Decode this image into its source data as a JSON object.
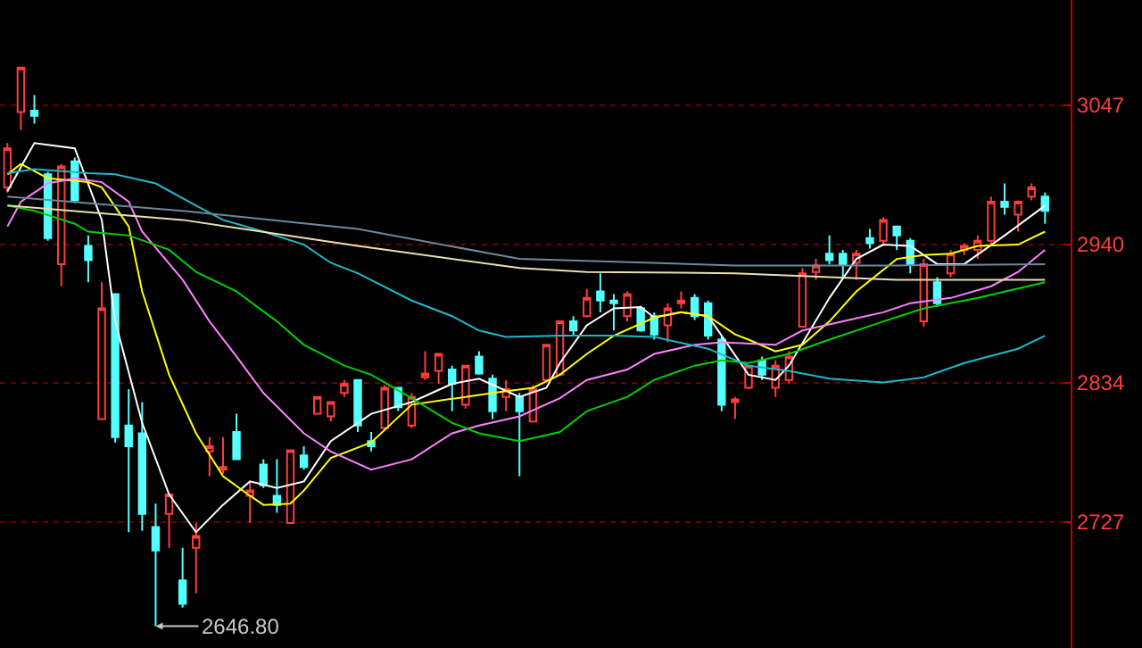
{
  "chart_data": {
    "type": "candlestick",
    "categories": [
      null,
      null,
      null,
      null,
      null,
      null,
      null,
      null,
      null,
      null,
      null,
      null,
      null,
      null,
      null,
      null,
      null,
      null,
      null,
      null,
      null,
      null,
      null,
      null,
      null,
      null,
      null,
      null,
      null,
      null,
      null,
      null,
      null,
      null,
      null,
      null,
      null,
      null,
      null,
      null,
      null,
      null,
      null,
      null,
      null,
      null,
      null,
      null,
      null,
      null,
      null,
      null,
      null,
      null,
      null,
      null,
      null,
      null,
      null,
      null,
      null,
      null,
      null,
      null,
      null,
      null,
      null,
      null,
      null,
      null,
      null,
      null,
      null,
      null,
      null,
      null,
      null,
      null
    ],
    "ohlc": [
      [
        2984,
        3018,
        2980,
        3014
      ],
      [
        3042,
        3076,
        3028,
        3076
      ],
      [
        3043,
        3055,
        3033,
        3039
      ],
      [
        2994,
        2996,
        2943,
        2945
      ],
      [
        2925,
        3002,
        2908,
        3000
      ],
      [
        3004,
        3007,
        2972,
        2974
      ],
      [
        2939,
        2947,
        2911,
        2928
      ],
      [
        2806,
        2911,
        2806,
        2891
      ],
      [
        2902,
        2902,
        2788,
        2792
      ],
      [
        2801,
        2829,
        2719,
        2785
      ],
      [
        2795,
        2819,
        2720,
        2733
      ],
      [
        2723,
        2741,
        2646.8,
        2705
      ],
      [
        2733,
        2748,
        2707,
        2748
      ],
      [
        2682,
        2707,
        2661,
        2664
      ],
      [
        2707,
        2726,
        2672,
        2716
      ],
      [
        2781,
        2792,
        2762,
        2785
      ],
      [
        2767,
        2792,
        2764,
        2769
      ],
      [
        2796,
        2810,
        2775,
        2775
      ],
      [
        2747,
        2758,
        2726,
        2751
      ],
      [
        2771,
        2775,
        2753,
        2755
      ],
      [
        2747,
        2775,
        2734,
        2740
      ],
      [
        2726,
        2782,
        2726,
        2782
      ],
      [
        2778,
        2785,
        2767,
        2769
      ],
      [
        2810,
        2823,
        2810,
        2823
      ],
      [
        2808,
        2819,
        2804,
        2819
      ],
      [
        2826,
        2836,
        2823,
        2833
      ],
      [
        2836,
        2836,
        2796,
        2801
      ],
      [
        2789,
        2796,
        2781,
        2785
      ],
      [
        2799,
        2832,
        2797,
        2830
      ],
      [
        2830,
        2830,
        2812,
        2815
      ],
      [
        2801,
        2826,
        2799,
        2823
      ],
      [
        2838,
        2858,
        2836,
        2841
      ],
      [
        2843,
        2856,
        2833,
        2856
      ],
      [
        2844,
        2847,
        2812,
        2833
      ],
      [
        2817,
        2847,
        2814,
        2847
      ],
      [
        2854,
        2858,
        2840,
        2841
      ],
      [
        2837,
        2840,
        2806,
        2812
      ],
      [
        2823,
        2836,
        2812,
        2829
      ],
      [
        2823,
        2826,
        2762,
        2812
      ],
      [
        2804,
        2832,
        2804,
        2829
      ],
      [
        2836,
        2863,
        2836,
        2863
      ],
      [
        2840,
        2881,
        2840,
        2881
      ],
      [
        2881,
        2885,
        2870,
        2874
      ],
      [
        2885,
        2906,
        2884,
        2899
      ],
      [
        2904,
        2918,
        2888,
        2897
      ],
      [
        2897,
        2902,
        2874,
        2895
      ],
      [
        2885,
        2904,
        2881,
        2902
      ],
      [
        2891,
        2893,
        2873,
        2874
      ],
      [
        2885,
        2888,
        2867,
        2871
      ],
      [
        2878,
        2895,
        2865,
        2891
      ],
      [
        2895,
        2904,
        2891,
        2897
      ],
      [
        2899,
        2902,
        2882,
        2885
      ],
      [
        2895,
        2897,
        2867,
        2870
      ],
      [
        2867,
        2870,
        2812,
        2817
      ],
      [
        2819,
        2823,
        2806,
        2821
      ],
      [
        2830,
        2847,
        2829,
        2847
      ],
      [
        2851,
        2854,
        2836,
        2840
      ],
      [
        2830,
        2851,
        2823,
        2847
      ],
      [
        2836,
        2858,
        2833,
        2854
      ],
      [
        2877,
        2922,
        2877,
        2918
      ],
      [
        2919,
        2929,
        2913,
        2924
      ],
      [
        2933,
        2947,
        2925,
        2928
      ],
      [
        2933,
        2936,
        2915,
        2925
      ],
      [
        2926,
        2936,
        2913,
        2933
      ],
      [
        2945,
        2952,
        2937,
        2941
      ],
      [
        2943,
        2961,
        2940,
        2959
      ],
      [
        2954,
        2954,
        2936,
        2947
      ],
      [
        2943,
        2945,
        2918,
        2925
      ],
      [
        2881,
        2929,
        2877,
        2925
      ],
      [
        2911,
        2915,
        2892,
        2895
      ],
      [
        2918,
        2936,
        2915,
        2933
      ],
      [
        2936,
        2941,
        2932,
        2939
      ],
      [
        2936,
        2947,
        2929,
        2943
      ],
      [
        2943,
        2977,
        2940,
        2973
      ],
      [
        2973,
        2987,
        2963,
        2969
      ],
      [
        2963,
        2974,
        2950,
        2973
      ],
      [
        2977,
        2987,
        2974,
        2984
      ],
      [
        2977,
        2980,
        2956,
        2966
      ]
    ],
    "colors": [
      "#ff3c3c",
      "#ff3c3c",
      "#54ffff",
      "#54ffff",
      "#ff3c3c",
      "#54ffff",
      "#54ffff",
      "#ff3c3c",
      "#54ffff",
      "#54ffff",
      "#54ffff",
      "#54ffff",
      "#ff3c3c",
      "#54ffff",
      "#ff3c3c",
      "#ff3c3c",
      "#ff3c3c",
      "#54ffff",
      "#ff3c3c",
      "#54ffff",
      "#54ffff",
      "#ff3c3c",
      "#54ffff",
      "#ff3c3c",
      "#ff3c3c",
      "#ff3c3c",
      "#54ffff",
      "#54ffff",
      "#ff3c3c",
      "#54ffff",
      "#ff3c3c",
      "#ff3c3c",
      "#ff3c3c",
      "#54ffff",
      "#ff3c3c",
      "#54ffff",
      "#54ffff",
      "#ff3c3c",
      "#54ffff",
      "#ff3c3c",
      "#ff3c3c",
      "#ff3c3c",
      "#54ffff",
      "#ff3c3c",
      "#54ffff",
      "#54ffff",
      "#ff3c3c",
      "#54ffff",
      "#54ffff",
      "#ff3c3c",
      "#ff3c3c",
      "#54ffff",
      "#54ffff",
      "#54ffff",
      "#ff3c3c",
      "#ff3c3c",
      "#54ffff",
      "#ff3c3c",
      "#ff3c3c",
      "#ff3c3c",
      "#ff3c3c",
      "#54ffff",
      "#54ffff",
      "#ff3c3c",
      "#54ffff",
      "#ff3c3c",
      "#54ffff",
      "#54ffff",
      "#ff3c3c",
      "#54ffff",
      "#ff3c3c",
      "#ff3c3c",
      "#ff3c3c",
      "#ff3c3c",
      "#54ffff",
      "#ff3c3c",
      "#ff3c3c",
      "#54ffff"
    ],
    "series": [
      {
        "type": "line",
        "color": "#ffffff",
        "values": [
          2981,
          null,
          3018,
          null,
          null,
          3014,
          null,
          2959,
          2881,
          null,
          2803,
          null,
          2748,
          null,
          2719,
          null,
          2740,
          null,
          2758,
          null,
          2753,
          null,
          2758,
          null,
          2789,
          null,
          null,
          2810,
          null,
          null,
          2819,
          null,
          null,
          2833,
          null,
          2837,
          null,
          null,
          2823,
          null,
          2830,
          2849,
          null,
          2878,
          null,
          2891,
          null,
          2892,
          2884,
          null,
          2888,
          null,
          2885,
          null,
          null,
          2840,
          null,
          2836,
          2847,
          null,
          null,
          2899,
          null,
          2929,
          null,
          2940,
          null,
          2939,
          null,
          2925,
          null,
          2925,
          null,
          null,
          2947,
          null,
          null,
          2970
        ]
      },
      {
        "type": "line",
        "color": "#ffff00",
        "values": [
          2994,
          3002,
          null,
          2991,
          null,
          null,
          2988,
          2984,
          null,
          2954,
          2904,
          null,
          2840,
          null,
          2795,
          null,
          2762,
          null,
          2747,
          2740,
          null,
          2741,
          2751,
          null,
          2776,
          null,
          null,
          2788,
          null,
          null,
          2817,
          null,
          null,
          null,
          2823,
          null,
          2826,
          null,
          null,
          2830,
          null,
          2840,
          null,
          2856,
          null,
          2870,
          null,
          null,
          2884,
          null,
          2888,
          null,
          2885,
          null,
          2871,
          2867,
          null,
          2858,
          null,
          2863,
          null,
          2881,
          null,
          2904,
          null,
          null,
          2929,
          null,
          2932,
          null,
          2933,
          null,
          2939,
          null,
          null,
          2940,
          null,
          2950
        ]
      },
      {
        "type": "line",
        "color": "#ff80ff",
        "values": [
          2954,
          2973,
          null,
          2987,
          null,
          2991,
          null,
          2988,
          null,
          2973,
          2950,
          null,
          null,
          2913,
          null,
          2881,
          null,
          2854,
          null,
          2826,
          null,
          null,
          2795,
          null,
          2781,
          null,
          null,
          2767,
          null,
          null,
          2775,
          null,
          null,
          2795,
          null,
          2801,
          null,
          null,
          2808,
          null,
          null,
          2822,
          null,
          2836,
          null,
          null,
          2844,
          null,
          2856,
          null,
          null,
          2863,
          null,
          2865,
          null,
          null,
          null,
          2863,
          null,
          2874,
          null,
          null,
          2881,
          null,
          null,
          2888,
          null,
          2895,
          null,
          null,
          2899,
          null,
          null,
          2908,
          null,
          2919,
          null,
          2936
        ]
      },
      {
        "type": "line",
        "color": "#00d000",
        "values": [
          2970,
          null,
          2966,
          null,
          null,
          2956,
          2950,
          null,
          null,
          2947,
          null,
          null,
          2936,
          null,
          2919,
          null,
          null,
          2904,
          null,
          null,
          2881,
          null,
          2863,
          null,
          null,
          2847,
          null,
          2840,
          null,
          null,
          2822,
          null,
          null,
          2803,
          null,
          2795,
          null,
          null,
          2789,
          null,
          null,
          2796,
          null,
          2812,
          null,
          null,
          2823,
          null,
          2836,
          null,
          null,
          2847,
          null,
          2851,
          null,
          2849,
          null,
          null,
          2856,
          null,
          null,
          2867,
          null,
          null,
          null,
          2881,
          null,
          null,
          2891,
          null,
          null,
          null,
          2899,
          null,
          null,
          null,
          null,
          2911
        ]
      },
      {
        "type": "line",
        "color": "#20b8c8",
        "values": [
          2995,
          null,
          2998,
          null,
          null,
          null,
          2995,
          null,
          2994,
          null,
          null,
          2987,
          null,
          null,
          2970,
          null,
          2959,
          null,
          null,
          2950,
          null,
          null,
          2940,
          null,
          2926,
          null,
          2918,
          null,
          null,
          null,
          2897,
          null,
          null,
          2885,
          null,
          2874,
          null,
          2869,
          null,
          null,
          null,
          2870,
          null,
          null,
          null,
          2870,
          null,
          null,
          2869,
          null,
          null,
          null,
          2860,
          null,
          null,
          2847,
          null,
          null,
          2843,
          null,
          null,
          2837,
          null,
          null,
          null,
          2834,
          null,
          null,
          2838,
          null,
          null,
          2849,
          null,
          null,
          null,
          2860,
          null,
          2870
        ]
      },
      {
        "type": "line",
        "color": "#6a8a9a",
        "values": [
          2977,
          null,
          null,
          null,
          null,
          null,
          null,
          null,
          null,
          null,
          null,
          null,
          null,
          2966,
          null,
          null,
          null,
          null,
          null,
          null,
          null,
          null,
          null,
          null,
          null,
          null,
          2952,
          null,
          null,
          null,
          null,
          null,
          null,
          null,
          null,
          null,
          null,
          null,
          2929,
          null,
          null,
          null,
          null,
          null,
          null,
          null,
          null,
          null,
          null,
          null,
          null,
          null,
          null,
          null,
          2924,
          null,
          null,
          null,
          null,
          null,
          null,
          null,
          null,
          null,
          null,
          null,
          2924,
          null,
          null,
          null,
          null,
          null,
          null,
          null,
          null,
          null,
          null,
          2925
        ]
      },
      {
        "type": "line",
        "color": "#e8e0b0",
        "values": [
          2970,
          null,
          null,
          null,
          null,
          null,
          null,
          null,
          null,
          null,
          null,
          null,
          null,
          2959,
          null,
          null,
          null,
          null,
          null,
          null,
          null,
          null,
          null,
          null,
          null,
          null,
          2939,
          null,
          null,
          null,
          null,
          null,
          null,
          null,
          null,
          null,
          null,
          null,
          2922,
          null,
          null,
          null,
          null,
          2919,
          null,
          null,
          null,
          null,
          null,
          null,
          null,
          null,
          null,
          null,
          2918,
          null,
          null,
          null,
          null,
          null,
          null,
          null,
          null,
          null,
          null,
          null,
          2913,
          null,
          null,
          null,
          null,
          null,
          null,
          null,
          null,
          null,
          null,
          2913
        ]
      }
    ],
    "ylim": [
      2630,
      3128
    ],
    "yticks": [
      2727,
      2834,
      2940,
      3047
    ],
    "grid": "y",
    "tick_labels": "y",
    "annotations": [
      "2646.80"
    ]
  }
}
